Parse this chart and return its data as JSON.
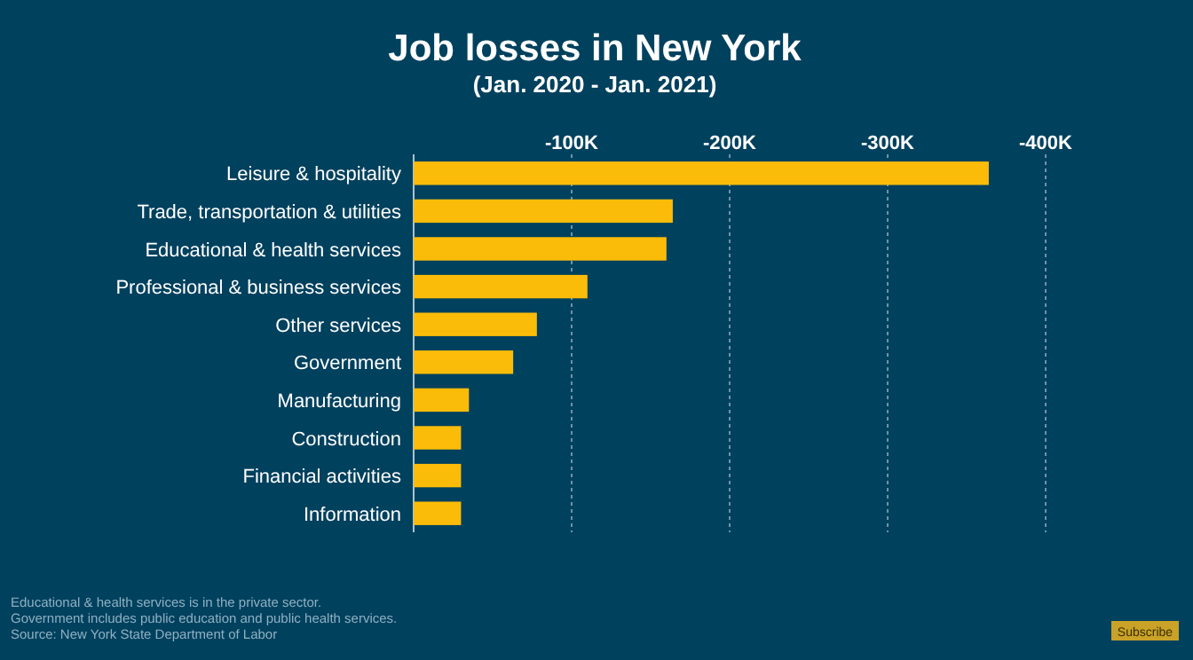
{
  "chart_data": {
    "type": "bar",
    "orientation": "horizontal",
    "title": "Job losses in New York",
    "subtitle": "(Jan. 2020 - Jan. 2021)",
    "categories": [
      "Leisure & hospitality",
      "Trade, transportation & utilities",
      "Educational & health services",
      "Professional & business services",
      "Other services",
      "Government",
      "Manufacturing",
      "Construction",
      "Financial activities",
      "Information"
    ],
    "values": [
      -364000,
      -164000,
      -160000,
      -110000,
      -78000,
      -63000,
      -35000,
      -30000,
      -30000,
      -30000
    ],
    "color": "#fbbc09",
    "xlim": [
      0,
      -400000
    ],
    "xticks": [
      {
        "value": -100000,
        "label": "-100K"
      },
      {
        "value": -200000,
        "label": "-200K"
      },
      {
        "value": -300000,
        "label": "-300K"
      },
      {
        "value": -400000,
        "label": "-400K"
      }
    ],
    "grid": "x",
    "annotations": [
      "Educational & health services is in the private sector.",
      "Government includes public education and public health services.",
      "Source: New York State Department of Labor",
      "Subscribe"
    ]
  }
}
